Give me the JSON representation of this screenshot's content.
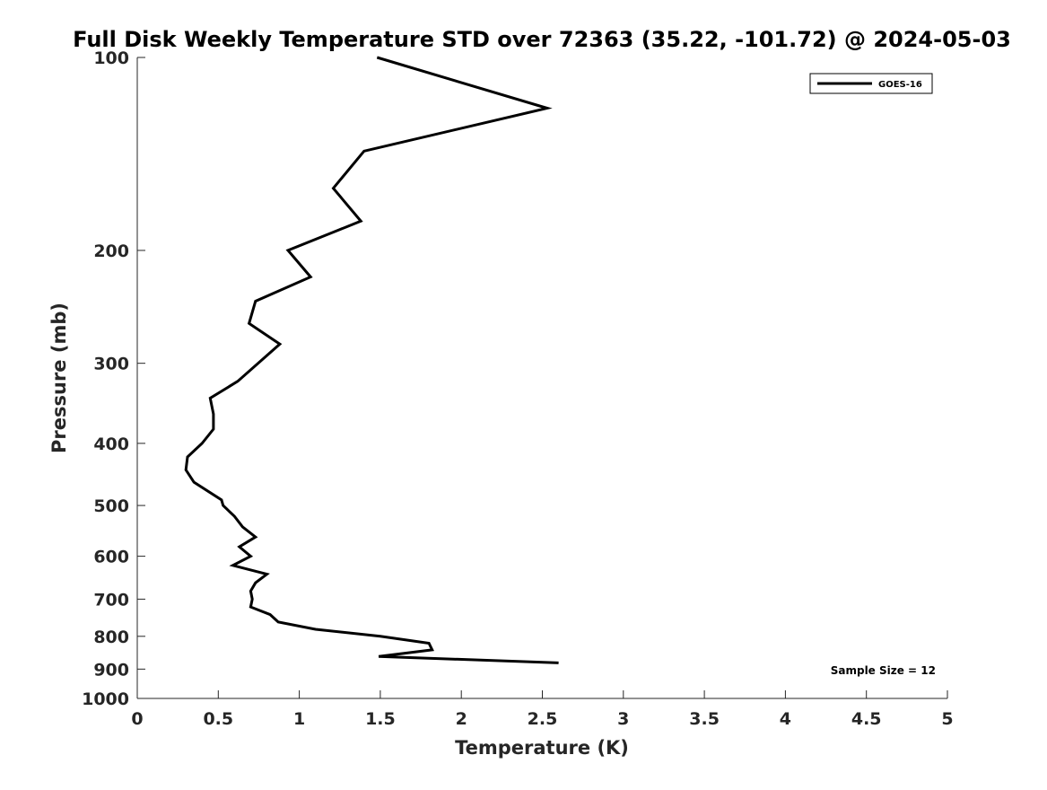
{
  "chart_data": {
    "type": "line",
    "title": "Full Disk Weekly Temperature STD over 72363 (35.22, -101.72) @ 2024-05-03",
    "xlabel": "Temperature (K)",
    "ylabel": "Pressure (mb)",
    "xlim": [
      0,
      5
    ],
    "ylim": [
      100,
      1000
    ],
    "y_scale": "log",
    "y_reversed": true,
    "xticks": [
      0,
      0.5,
      1,
      1.5,
      2,
      2.5,
      3,
      3.5,
      4,
      4.5,
      5
    ],
    "xtick_labels": [
      "0",
      "0.5",
      "1",
      "1.5",
      "2",
      "2.5",
      "3",
      "3.5",
      "4",
      "4.5",
      "5"
    ],
    "yticks": [
      100,
      200,
      300,
      400,
      500,
      600,
      700,
      800,
      900,
      1000
    ],
    "ytick_labels": [
      "100",
      "200",
      "300",
      "400",
      "500",
      "600",
      "700",
      "800",
      "900",
      "1000"
    ],
    "grid": false,
    "legend_position": "top-right",
    "series": [
      {
        "name": "GOES-16",
        "color": "#000000",
        "points": [
          {
            "x": 1.48,
            "y": 100
          },
          {
            "x": 2.53,
            "y": 120
          },
          {
            "x": 1.4,
            "y": 140
          },
          {
            "x": 1.21,
            "y": 160
          },
          {
            "x": 1.38,
            "y": 180
          },
          {
            "x": 0.93,
            "y": 200
          },
          {
            "x": 1.07,
            "y": 220
          },
          {
            "x": 0.73,
            "y": 240
          },
          {
            "x": 0.69,
            "y": 260
          },
          {
            "x": 0.88,
            "y": 280
          },
          {
            "x": 0.62,
            "y": 320
          },
          {
            "x": 0.45,
            "y": 340
          },
          {
            "x": 0.47,
            "y": 360
          },
          {
            "x": 0.47,
            "y": 380
          },
          {
            "x": 0.4,
            "y": 400
          },
          {
            "x": 0.31,
            "y": 420
          },
          {
            "x": 0.3,
            "y": 440
          },
          {
            "x": 0.35,
            "y": 460
          },
          {
            "x": 0.52,
            "y": 490
          },
          {
            "x": 0.53,
            "y": 500
          },
          {
            "x": 0.6,
            "y": 520
          },
          {
            "x": 0.65,
            "y": 540
          },
          {
            "x": 0.73,
            "y": 560
          },
          {
            "x": 0.63,
            "y": 580
          },
          {
            "x": 0.7,
            "y": 600
          },
          {
            "x": 0.59,
            "y": 620
          },
          {
            "x": 0.8,
            "y": 640
          },
          {
            "x": 0.73,
            "y": 660
          },
          {
            "x": 0.7,
            "y": 680
          },
          {
            "x": 0.71,
            "y": 700
          },
          {
            "x": 0.7,
            "y": 720
          },
          {
            "x": 0.82,
            "y": 740
          },
          {
            "x": 0.87,
            "y": 760
          },
          {
            "x": 1.1,
            "y": 780
          },
          {
            "x": 1.5,
            "y": 800
          },
          {
            "x": 1.8,
            "y": 820
          },
          {
            "x": 1.82,
            "y": 840
          },
          {
            "x": 1.49,
            "y": 860
          },
          {
            "x": 2.6,
            "y": 880
          }
        ]
      }
    ],
    "annotations": [
      {
        "text": "Sample Size = 12",
        "position": "bottom-right"
      }
    ]
  }
}
